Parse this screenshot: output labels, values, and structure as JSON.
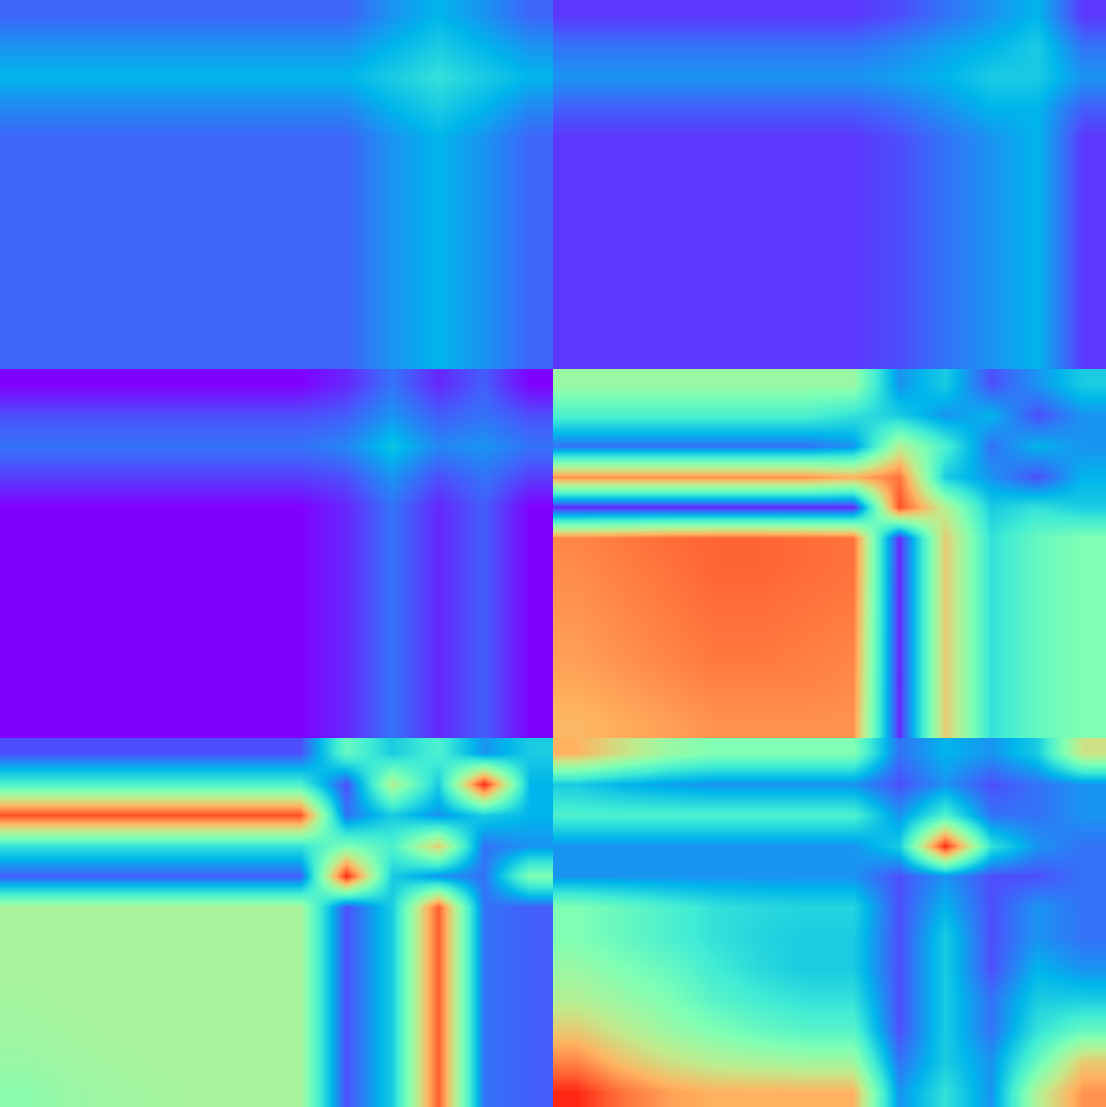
{
  "chart_data": [
    {
      "type": "heatmap",
      "tick_labels": false,
      "zlim": [
        0,
        1
      ],
      "z": [
        [
          0.13,
          0.13,
          0.13,
          0.13,
          0.13,
          0.13,
          0.13,
          0.13,
          0.2,
          0.25,
          0.2,
          0.13
        ],
        [
          0.2,
          0.2,
          0.2,
          0.2,
          0.2,
          0.2,
          0.2,
          0.2,
          0.25,
          0.3,
          0.25,
          0.2
        ],
        [
          0.25,
          0.25,
          0.25,
          0.25,
          0.25,
          0.25,
          0.25,
          0.25,
          0.3,
          0.35,
          0.3,
          0.25
        ],
        [
          0.18,
          0.18,
          0.18,
          0.18,
          0.18,
          0.18,
          0.18,
          0.18,
          0.25,
          0.3,
          0.25,
          0.18
        ],
        [
          0.13,
          0.13,
          0.13,
          0.13,
          0.13,
          0.13,
          0.13,
          0.13,
          0.2,
          0.25,
          0.2,
          0.13
        ],
        [
          0.13,
          0.13,
          0.13,
          0.13,
          0.13,
          0.13,
          0.13,
          0.13,
          0.2,
          0.25,
          0.2,
          0.13
        ],
        [
          0.13,
          0.13,
          0.13,
          0.13,
          0.13,
          0.13,
          0.13,
          0.13,
          0.2,
          0.25,
          0.2,
          0.13
        ],
        [
          0.13,
          0.13,
          0.13,
          0.13,
          0.13,
          0.13,
          0.13,
          0.13,
          0.2,
          0.25,
          0.2,
          0.13
        ],
        [
          0.13,
          0.13,
          0.13,
          0.13,
          0.13,
          0.13,
          0.13,
          0.13,
          0.2,
          0.25,
          0.2,
          0.13
        ],
        [
          0.13,
          0.13,
          0.13,
          0.13,
          0.13,
          0.13,
          0.13,
          0.13,
          0.2,
          0.25,
          0.2,
          0.13
        ],
        [
          0.13,
          0.13,
          0.13,
          0.13,
          0.13,
          0.13,
          0.13,
          0.13,
          0.2,
          0.25,
          0.2,
          0.13
        ],
        [
          0.13,
          0.13,
          0.13,
          0.13,
          0.13,
          0.13,
          0.13,
          0.13,
          0.2,
          0.25,
          0.2,
          0.13
        ]
      ]
    },
    {
      "type": "heatmap",
      "tick_labels": false,
      "zlim": [
        0,
        1
      ],
      "z": [
        [
          0.07,
          0.07,
          0.07,
          0.07,
          0.07,
          0.07,
          0.07,
          0.1,
          0.15,
          0.2,
          0.25,
          0.07
        ],
        [
          0.15,
          0.15,
          0.15,
          0.15,
          0.15,
          0.15,
          0.15,
          0.18,
          0.22,
          0.25,
          0.3,
          0.15
        ],
        [
          0.2,
          0.2,
          0.2,
          0.2,
          0.2,
          0.2,
          0.2,
          0.22,
          0.25,
          0.3,
          0.3,
          0.2
        ],
        [
          0.12,
          0.12,
          0.12,
          0.12,
          0.12,
          0.12,
          0.12,
          0.15,
          0.2,
          0.25,
          0.25,
          0.12
        ],
        [
          0.07,
          0.07,
          0.07,
          0.07,
          0.07,
          0.07,
          0.07,
          0.1,
          0.15,
          0.2,
          0.25,
          0.07
        ],
        [
          0.07,
          0.07,
          0.07,
          0.07,
          0.07,
          0.07,
          0.07,
          0.1,
          0.15,
          0.2,
          0.25,
          0.07
        ],
        [
          0.07,
          0.07,
          0.07,
          0.07,
          0.07,
          0.07,
          0.07,
          0.1,
          0.15,
          0.2,
          0.25,
          0.07
        ],
        [
          0.07,
          0.07,
          0.07,
          0.07,
          0.07,
          0.07,
          0.07,
          0.1,
          0.15,
          0.2,
          0.25,
          0.07
        ],
        [
          0.07,
          0.07,
          0.07,
          0.07,
          0.07,
          0.07,
          0.07,
          0.1,
          0.15,
          0.2,
          0.25,
          0.07
        ],
        [
          0.07,
          0.07,
          0.07,
          0.07,
          0.07,
          0.07,
          0.07,
          0.1,
          0.15,
          0.2,
          0.25,
          0.07
        ],
        [
          0.07,
          0.07,
          0.07,
          0.07,
          0.07,
          0.07,
          0.07,
          0.1,
          0.15,
          0.2,
          0.25,
          0.07
        ],
        [
          0.07,
          0.07,
          0.07,
          0.07,
          0.07,
          0.07,
          0.07,
          0.1,
          0.15,
          0.2,
          0.25,
          0.07
        ]
      ]
    },
    {
      "type": "heatmap",
      "tick_labels": false,
      "zlim": [
        0,
        1
      ],
      "z": [
        [
          0.0,
          0.0,
          0.0,
          0.0,
          0.0,
          0.0,
          0.0,
          0.05,
          0.15,
          0.05,
          0.12,
          0.0
        ],
        [
          0.1,
          0.1,
          0.1,
          0.1,
          0.1,
          0.1,
          0.1,
          0.12,
          0.2,
          0.12,
          0.15,
          0.1
        ],
        [
          0.15,
          0.15,
          0.15,
          0.15,
          0.15,
          0.15,
          0.15,
          0.18,
          0.28,
          0.18,
          0.2,
          0.15
        ],
        [
          0.08,
          0.08,
          0.08,
          0.08,
          0.08,
          0.08,
          0.08,
          0.1,
          0.2,
          0.1,
          0.15,
          0.08
        ],
        [
          0.0,
          0.0,
          0.0,
          0.0,
          0.0,
          0.0,
          0.0,
          0.05,
          0.15,
          0.05,
          0.12,
          0.0
        ],
        [
          0.0,
          0.0,
          0.0,
          0.0,
          0.0,
          0.0,
          0.0,
          0.05,
          0.15,
          0.05,
          0.12,
          0.0
        ],
        [
          0.0,
          0.0,
          0.0,
          0.0,
          0.0,
          0.0,
          0.0,
          0.05,
          0.15,
          0.05,
          0.12,
          0.0
        ],
        [
          0.0,
          0.0,
          0.0,
          0.0,
          0.0,
          0.0,
          0.0,
          0.05,
          0.15,
          0.05,
          0.12,
          0.0
        ],
        [
          0.0,
          0.0,
          0.0,
          0.0,
          0.0,
          0.0,
          0.0,
          0.05,
          0.15,
          0.05,
          0.12,
          0.0
        ],
        [
          0.0,
          0.0,
          0.0,
          0.0,
          0.0,
          0.0,
          0.0,
          0.05,
          0.15,
          0.05,
          0.12,
          0.0
        ],
        [
          0.0,
          0.0,
          0.0,
          0.0,
          0.0,
          0.0,
          0.0,
          0.05,
          0.15,
          0.05,
          0.12,
          0.0
        ],
        [
          0.0,
          0.0,
          0.0,
          0.0,
          0.0,
          0.0,
          0.0,
          0.05,
          0.15,
          0.05,
          0.12,
          0.0
        ]
      ]
    },
    {
      "type": "heatmap",
      "tick_labels": false,
      "zlim": [
        0,
        1
      ],
      "z": [
        [
          0.55,
          0.55,
          0.55,
          0.55,
          0.55,
          0.55,
          0.55,
          0.2,
          0.3,
          0.1,
          0.2,
          0.3
        ],
        [
          0.4,
          0.4,
          0.4,
          0.4,
          0.4,
          0.4,
          0.35,
          0.3,
          0.2,
          0.25,
          0.1,
          0.2
        ],
        [
          0.15,
          0.15,
          0.15,
          0.15,
          0.15,
          0.15,
          0.2,
          0.6,
          0.4,
          0.15,
          0.25,
          0.2
        ],
        [
          0.8,
          0.8,
          0.8,
          0.8,
          0.8,
          0.8,
          0.75,
          0.85,
          0.3,
          0.2,
          0.1,
          0.25
        ],
        [
          0.05,
          0.05,
          0.05,
          0.05,
          0.05,
          0.05,
          0.05,
          0.9,
          0.6,
          0.3,
          0.35,
          0.3
        ],
        [
          0.82,
          0.84,
          0.86,
          0.87,
          0.87,
          0.86,
          0.85,
          0.05,
          0.7,
          0.35,
          0.45,
          0.5
        ],
        [
          0.81,
          0.83,
          0.85,
          0.87,
          0.87,
          0.86,
          0.85,
          0.05,
          0.7,
          0.35,
          0.45,
          0.5
        ],
        [
          0.8,
          0.82,
          0.84,
          0.86,
          0.86,
          0.85,
          0.84,
          0.05,
          0.7,
          0.35,
          0.45,
          0.5
        ],
        [
          0.79,
          0.81,
          0.83,
          0.85,
          0.85,
          0.84,
          0.83,
          0.05,
          0.7,
          0.35,
          0.45,
          0.5
        ],
        [
          0.78,
          0.8,
          0.82,
          0.84,
          0.84,
          0.83,
          0.82,
          0.05,
          0.7,
          0.35,
          0.45,
          0.5
        ],
        [
          0.76,
          0.78,
          0.8,
          0.82,
          0.82,
          0.82,
          0.81,
          0.05,
          0.7,
          0.35,
          0.45,
          0.5
        ],
        [
          0.74,
          0.76,
          0.78,
          0.8,
          0.8,
          0.8,
          0.8,
          0.05,
          0.7,
          0.35,
          0.45,
          0.5
        ]
      ]
    },
    {
      "type": "heatmap",
      "tick_labels": false,
      "zlim": [
        0,
        1
      ],
      "z": [
        [
          0.1,
          0.1,
          0.1,
          0.1,
          0.1,
          0.1,
          0.1,
          0.45,
          0.3,
          0.4,
          0.2,
          0.3
        ],
        [
          0.4,
          0.4,
          0.4,
          0.4,
          0.4,
          0.4,
          0.4,
          0.1,
          0.6,
          0.3,
          0.95,
          0.25
        ],
        [
          0.9,
          0.9,
          0.9,
          0.9,
          0.9,
          0.9,
          0.9,
          0.15,
          0.3,
          0.2,
          0.3,
          0.25
        ],
        [
          0.35,
          0.35,
          0.35,
          0.35,
          0.35,
          0.35,
          0.35,
          0.5,
          0.4,
          0.7,
          0.15,
          0.2
        ],
        [
          0.12,
          0.12,
          0.12,
          0.12,
          0.12,
          0.12,
          0.12,
          0.95,
          0.3,
          0.2,
          0.15,
          0.5
        ],
        [
          0.58,
          0.58,
          0.58,
          0.58,
          0.58,
          0.58,
          0.58,
          0.1,
          0.3,
          0.88,
          0.15,
          0.12
        ],
        [
          0.58,
          0.58,
          0.58,
          0.58,
          0.58,
          0.58,
          0.58,
          0.1,
          0.3,
          0.88,
          0.15,
          0.12
        ],
        [
          0.58,
          0.58,
          0.58,
          0.58,
          0.58,
          0.58,
          0.58,
          0.1,
          0.3,
          0.88,
          0.15,
          0.12
        ],
        [
          0.57,
          0.58,
          0.58,
          0.58,
          0.58,
          0.58,
          0.58,
          0.1,
          0.3,
          0.88,
          0.15,
          0.12
        ],
        [
          0.56,
          0.57,
          0.58,
          0.58,
          0.58,
          0.58,
          0.58,
          0.1,
          0.3,
          0.88,
          0.15,
          0.12
        ],
        [
          0.55,
          0.56,
          0.57,
          0.58,
          0.58,
          0.58,
          0.58,
          0.1,
          0.3,
          0.88,
          0.15,
          0.12
        ],
        [
          0.52,
          0.55,
          0.56,
          0.57,
          0.58,
          0.58,
          0.58,
          0.1,
          0.3,
          0.88,
          0.15,
          0.12
        ]
      ]
    },
    {
      "type": "heatmap",
      "tick_labels": false,
      "zlim": [
        0,
        1
      ],
      "z": [
        [
          0.75,
          0.65,
          0.55,
          0.5,
          0.5,
          0.5,
          0.5,
          0.15,
          0.25,
          0.2,
          0.3,
          0.65
        ],
        [
          0.3,
          0.25,
          0.22,
          0.2,
          0.2,
          0.2,
          0.2,
          0.1,
          0.2,
          0.1,
          0.15,
          0.2
        ],
        [
          0.4,
          0.4,
          0.4,
          0.4,
          0.4,
          0.4,
          0.4,
          0.2,
          0.4,
          0.15,
          0.15,
          0.2
        ],
        [
          0.2,
          0.2,
          0.2,
          0.2,
          0.2,
          0.2,
          0.2,
          0.3,
          0.95,
          0.35,
          0.2,
          0.15
        ],
        [
          0.2,
          0.2,
          0.2,
          0.2,
          0.2,
          0.2,
          0.2,
          0.1,
          0.2,
          0.1,
          0.1,
          0.15
        ],
        [
          0.5,
          0.45,
          0.4,
          0.35,
          0.33,
          0.32,
          0.32,
          0.1,
          0.25,
          0.1,
          0.2,
          0.15
        ],
        [
          0.5,
          0.45,
          0.4,
          0.35,
          0.32,
          0.3,
          0.3,
          0.1,
          0.3,
          0.1,
          0.2,
          0.15
        ],
        [
          0.55,
          0.5,
          0.45,
          0.38,
          0.33,
          0.3,
          0.3,
          0.1,
          0.3,
          0.1,
          0.25,
          0.2
        ],
        [
          0.6,
          0.55,
          0.5,
          0.42,
          0.38,
          0.35,
          0.35,
          0.1,
          0.3,
          0.15,
          0.3,
          0.3
        ],
        [
          0.7,
          0.62,
          0.55,
          0.5,
          0.45,
          0.42,
          0.42,
          0.1,
          0.3,
          0.15,
          0.35,
          0.45
        ],
        [
          0.82,
          0.72,
          0.65,
          0.6,
          0.58,
          0.56,
          0.56,
          0.15,
          0.3,
          0.2,
          0.45,
          0.7
        ],
        [
          0.95,
          0.85,
          0.78,
          0.75,
          0.75,
          0.75,
          0.75,
          0.2,
          0.35,
          0.2,
          0.6,
          0.8
        ]
      ]
    }
  ]
}
